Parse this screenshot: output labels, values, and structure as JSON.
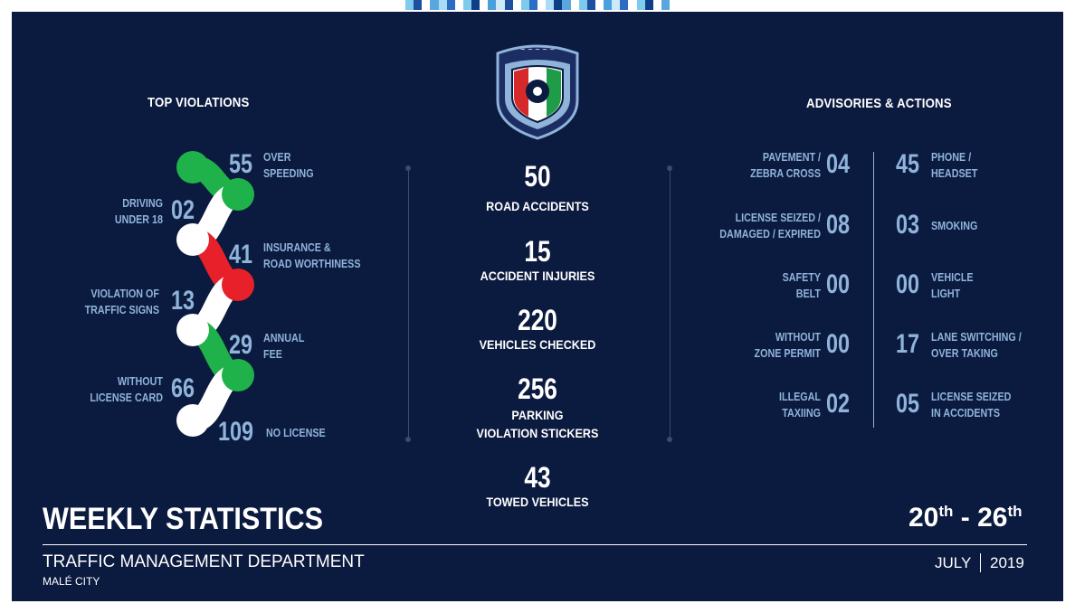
{
  "top_violations": {
    "heading": "TOP VIOLATIONS",
    "items": [
      {
        "value": "55",
        "label_line1": "OVER",
        "label_line2": "SPEEDING"
      },
      {
        "value": "02",
        "label_line1": "DRIVING",
        "label_line2": "UNDER 18"
      },
      {
        "value": "41",
        "label_line1": "INSURANCE &",
        "label_line2": "ROAD WORTHINESS"
      },
      {
        "value": "13",
        "label_line1": "VIOLATION OF",
        "label_line2": "TRAFFIC SIGNS"
      },
      {
        "value": "29",
        "label_line1": "ANNUAL",
        "label_line2": "FEE"
      },
      {
        "value": "66",
        "label_line1": "WITHOUT",
        "label_line2": "LICENSE CARD"
      },
      {
        "value": "109",
        "label_line1": "NO LICENSE",
        "label_line2": ""
      }
    ]
  },
  "center_stats": [
    {
      "value": "50",
      "label_line1": "ROAD ACCIDENTS",
      "label_line2": ""
    },
    {
      "value": "15",
      "label_line1": "ACCIDENT INJURIES",
      "label_line2": ""
    },
    {
      "value": "220",
      "label_line1": "VEHICLES CHECKED",
      "label_line2": ""
    },
    {
      "value": "256",
      "label_line1": "PARKING",
      "label_line2": "VIOLATION STICKERS"
    },
    {
      "value": "43",
      "label_line1": "TOWED VEHICLES",
      "label_line2": ""
    }
  ],
  "advisories": {
    "heading": "ADVISORIES & ACTIONS",
    "left": [
      {
        "value": "04",
        "label_line1": "PAVEMENT /",
        "label_line2": "ZEBRA CROSS"
      },
      {
        "value": "08",
        "label_line1": "LICENSE SEIZED /",
        "label_line2": "DAMAGED / EXPIRED"
      },
      {
        "value": "00",
        "label_line1": "SAFETY",
        "label_line2": "BELT"
      },
      {
        "value": "00",
        "label_line1": "WITHOUT",
        "label_line2": "ZONE PERMIT"
      },
      {
        "value": "02",
        "label_line1": "ILLEGAL",
        "label_line2": "TAXIING"
      }
    ],
    "right": [
      {
        "value": "45",
        "label_line1": "PHONE /",
        "label_line2": "HEADSET"
      },
      {
        "value": "03",
        "label_line1": "SMOKING",
        "label_line2": ""
      },
      {
        "value": "00",
        "label_line1": "VEHICLE",
        "label_line2": "LIGHT"
      },
      {
        "value": "17",
        "label_line1": "LANE SWITCHING /",
        "label_line2": "OVER TAKING"
      },
      {
        "value": "05",
        "label_line1": "LICENSE SEIZED",
        "label_line2": "IN ACCIDENTS"
      }
    ]
  },
  "footer": {
    "title": "WEEKLY STATISTICS",
    "department": "TRAFFIC MANAGEMENT DEPARTMENT",
    "city": "MALÉ CITY",
    "date_start": "20",
    "date_end": "26",
    "ordinal": "th",
    "date_separator": "-",
    "month": "JULY",
    "year": "2019"
  },
  "colors": {
    "background": "#0b1a3f",
    "accent_blue": "#8fb3d9",
    "green": "#20b24a",
    "red": "#e8202a",
    "white": "#ffffff"
  },
  "emblem": {
    "icon": "police-emblem-icon"
  }
}
